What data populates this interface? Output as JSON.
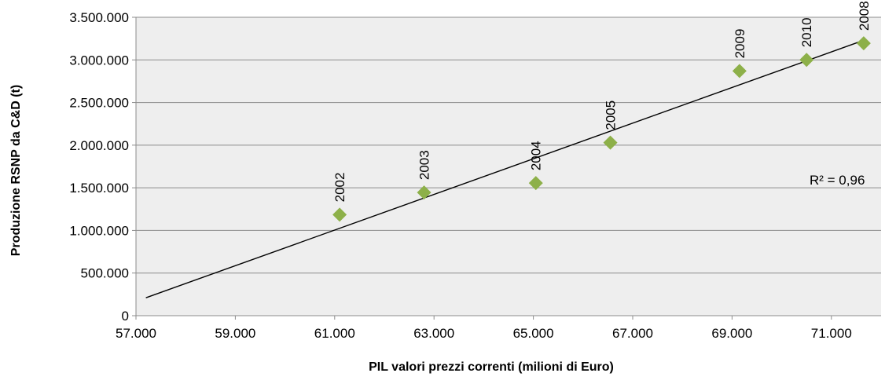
{
  "chart_data": {
    "type": "scatter",
    "xlabel": "PIL valori prezzi correnti  (milioni di Euro)",
    "ylabel": "Produzione  RSNP da C&D (t)",
    "xlim": [
      57000,
      72000
    ],
    "ylim": [
      0,
      3500000
    ],
    "x_ticks": [
      {
        "value": 57000,
        "label": "57.000"
      },
      {
        "value": 59000,
        "label": "59.000"
      },
      {
        "value": 61000,
        "label": "61.000"
      },
      {
        "value": 63000,
        "label": "63.000"
      },
      {
        "value": 65000,
        "label": "65.000"
      },
      {
        "value": 67000,
        "label": "67.000"
      },
      {
        "value": 69000,
        "label": "69.000"
      },
      {
        "value": 71000,
        "label": "71.000"
      }
    ],
    "y_ticks": [
      {
        "value": 0,
        "label": "0"
      },
      {
        "value": 500000,
        "label": "500.000"
      },
      {
        "value": 1000000,
        "label": "1.000.000"
      },
      {
        "value": 1500000,
        "label": "1.500.000"
      },
      {
        "value": 2000000,
        "label": "2.000.000"
      },
      {
        "value": 2500000,
        "label": "2.500.000"
      },
      {
        "value": 3000000,
        "label": "3.000.000"
      },
      {
        "value": 3500000,
        "label": "3.500.000"
      }
    ],
    "grid": {
      "horizontal": true,
      "vertical": false
    },
    "marker_color": "#8db049",
    "plot_background": "#eeeeee",
    "points": [
      {
        "label": "2002",
        "x": 61100,
        "y": 1185000
      },
      {
        "label": "2003",
        "x": 62800,
        "y": 1445000
      },
      {
        "label": "2004",
        "x": 65050,
        "y": 1555000
      },
      {
        "label": "2005",
        "x": 66550,
        "y": 2030000
      },
      {
        "label": "2009",
        "x": 69150,
        "y": 2870000
      },
      {
        "label": "2010",
        "x": 70500,
        "y": 3000000
      },
      {
        "label": "2008",
        "x": 71650,
        "y": 3195000
      }
    ],
    "trendline": {
      "type": "linear",
      "x": [
        57200,
        71650
      ],
      "y": [
        210000,
        3230000
      ],
      "r2_label": "R² = 0,96"
    }
  }
}
